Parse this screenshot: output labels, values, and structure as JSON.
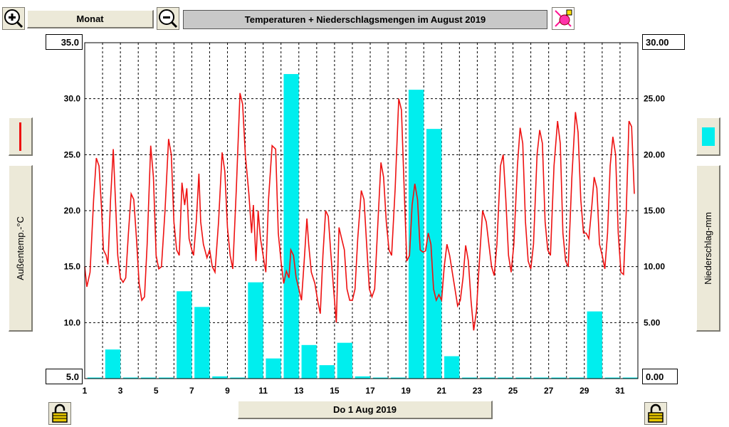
{
  "toolbar": {
    "period_label": "Monat",
    "title": "Temperaturen + Niederschlagsmengen im August 2019"
  },
  "axis": {
    "left_top_label": "35.0",
    "right_top_label": "30.00",
    "left_bottom_label": "5.0",
    "right_bottom_label": "0.00",
    "left_title": "Außentemp.-°C",
    "right_title": "Niederschlag-mm"
  },
  "footer": {
    "date_label": "Do 1 Aug 2019"
  },
  "colors": {
    "temperature": "#ee1111",
    "precipitation": "#00eeee"
  },
  "chart_data": {
    "type": "bar+line",
    "x_range": [
      1,
      32
    ],
    "x_ticks": [
      "1",
      "3",
      "5",
      "7",
      "9",
      "11",
      "13",
      "15",
      "17",
      "19",
      "21",
      "23",
      "25",
      "27",
      "29",
      "31"
    ],
    "left_axis": {
      "min": 5,
      "max": 35,
      "ticks": [
        "30.0",
        "25.0",
        "20.0",
        "15.0",
        "10.0"
      ]
    },
    "right_axis": {
      "min": 0,
      "max": 30,
      "ticks": [
        "25.00",
        "20.00",
        "15.00",
        "10.00",
        "5.00"
      ]
    },
    "grid": true,
    "precipitation": [
      {
        "day": 1,
        "mm": 0
      },
      {
        "day": 2,
        "mm": 2.6
      },
      {
        "day": 3,
        "mm": 0
      },
      {
        "day": 4,
        "mm": 0
      },
      {
        "day": 5,
        "mm": 0
      },
      {
        "day": 6,
        "mm": 7.8
      },
      {
        "day": 7,
        "mm": 6.4
      },
      {
        "day": 8,
        "mm": 0.2
      },
      {
        "day": 9,
        "mm": 0
      },
      {
        "day": 10,
        "mm": 8.6
      },
      {
        "day": 11,
        "mm": 1.8
      },
      {
        "day": 12,
        "mm": 27.2
      },
      {
        "day": 13,
        "mm": 3.0
      },
      {
        "day": 14,
        "mm": 1.2
      },
      {
        "day": 15,
        "mm": 3.2
      },
      {
        "day": 16,
        "mm": 0.2
      },
      {
        "day": 17,
        "mm": 0
      },
      {
        "day": 18,
        "mm": 0
      },
      {
        "day": 19,
        "mm": 25.8
      },
      {
        "day": 20,
        "mm": 22.3
      },
      {
        "day": 21,
        "mm": 2.0
      },
      {
        "day": 22,
        "mm": 0
      },
      {
        "day": 23,
        "mm": 0
      },
      {
        "day": 24,
        "mm": 0
      },
      {
        "day": 25,
        "mm": 0
      },
      {
        "day": 26,
        "mm": 0
      },
      {
        "day": 27,
        "mm": 0
      },
      {
        "day": 28,
        "mm": 0
      },
      {
        "day": 29,
        "mm": 6.0
      },
      {
        "day": 30,
        "mm": 0
      },
      {
        "day": 31,
        "mm": 0
      }
    ],
    "temperature": [
      [
        1.0,
        15.0
      ],
      [
        1.12,
        13.2
      ],
      [
        1.3,
        14.5
      ],
      [
        1.5,
        21.0
      ],
      [
        1.65,
        24.7
      ],
      [
        1.8,
        24.0
      ],
      [
        1.95,
        20.0
      ],
      [
        2.05,
        16.5
      ],
      [
        2.2,
        16.0
      ],
      [
        2.3,
        15.2
      ],
      [
        2.45,
        21.0
      ],
      [
        2.6,
        25.5
      ],
      [
        2.72,
        21.0
      ],
      [
        2.85,
        16.0
      ],
      [
        3.0,
        14.0
      ],
      [
        3.15,
        13.6
      ],
      [
        3.3,
        14.0
      ],
      [
        3.45,
        18.0
      ],
      [
        3.6,
        21.5
      ],
      [
        3.75,
        21.0
      ],
      [
        3.9,
        17.5
      ],
      [
        4.05,
        13.5
      ],
      [
        4.2,
        12.0
      ],
      [
        4.35,
        12.3
      ],
      [
        4.5,
        17.0
      ],
      [
        4.7,
        25.8
      ],
      [
        4.85,
        23.0
      ],
      [
        5.0,
        16.0
      ],
      [
        5.15,
        14.8
      ],
      [
        5.3,
        15.0
      ],
      [
        5.5,
        20.0
      ],
      [
        5.7,
        26.4
      ],
      [
        5.85,
        25.0
      ],
      [
        6.0,
        19.0
      ],
      [
        6.15,
        16.5
      ],
      [
        6.3,
        16.0
      ],
      [
        6.45,
        22.5
      ],
      [
        6.6,
        20.5
      ],
      [
        6.72,
        22.0
      ],
      [
        6.85,
        17.5
      ],
      [
        7.0,
        16.5
      ],
      [
        7.1,
        16.0
      ],
      [
        7.25,
        19.0
      ],
      [
        7.4,
        23.3
      ],
      [
        7.5,
        19.0
      ],
      [
        7.65,
        17.0
      ],
      [
        7.85,
        15.8
      ],
      [
        8.0,
        16.5
      ],
      [
        8.15,
        15.0
      ],
      [
        8.3,
        14.5
      ],
      [
        8.5,
        19.0
      ],
      [
        8.7,
        25.2
      ],
      [
        8.85,
        23.5
      ],
      [
        9.0,
        18.5
      ],
      [
        9.15,
        16.0
      ],
      [
        9.3,
        14.8
      ],
      [
        9.5,
        22.0
      ],
      [
        9.7,
        30.5
      ],
      [
        9.85,
        29.5
      ],
      [
        10.0,
        25.0
      ],
      [
        10.2,
        21.5
      ],
      [
        10.35,
        18.0
      ],
      [
        10.45,
        20.5
      ],
      [
        10.6,
        15.5
      ],
      [
        10.72,
        20.0
      ],
      [
        10.85,
        17.5
      ],
      [
        11.0,
        16.0
      ],
      [
        11.15,
        14.5
      ],
      [
        11.3,
        21.0
      ],
      [
        11.5,
        25.8
      ],
      [
        11.7,
        25.5
      ],
      [
        11.85,
        18.0
      ],
      [
        12.0,
        15.5
      ],
      [
        12.15,
        13.5
      ],
      [
        12.3,
        14.6
      ],
      [
        12.45,
        14.0
      ],
      [
        12.55,
        16.5
      ],
      [
        12.7,
        16.0
      ],
      [
        12.85,
        14.0
      ],
      [
        13.0,
        13.0
      ],
      [
        13.15,
        12.0
      ],
      [
        13.3,
        15.5
      ],
      [
        13.45,
        19.3
      ],
      [
        13.55,
        17.0
      ],
      [
        13.7,
        14.5
      ],
      [
        13.9,
        13.5
      ],
      [
        14.05,
        12.0
      ],
      [
        14.2,
        10.8
      ],
      [
        14.35,
        16.0
      ],
      [
        14.5,
        20.0
      ],
      [
        14.65,
        19.5
      ],
      [
        14.8,
        16.0
      ],
      [
        14.95,
        13.0
      ],
      [
        15.1,
        10.0
      ],
      [
        15.25,
        18.5
      ],
      [
        15.4,
        17.5
      ],
      [
        15.55,
        16.5
      ],
      [
        15.7,
        13.0
      ],
      [
        15.85,
        12.0
      ],
      [
        16.0,
        12.0
      ],
      [
        16.15,
        13.0
      ],
      [
        16.3,
        17.5
      ],
      [
        16.5,
        21.8
      ],
      [
        16.65,
        21.0
      ],
      [
        16.8,
        17.0
      ],
      [
        16.95,
        13.0
      ],
      [
        17.1,
        12.3
      ],
      [
        17.25,
        13.0
      ],
      [
        17.4,
        18.0
      ],
      [
        17.6,
        24.3
      ],
      [
        17.75,
        23.0
      ],
      [
        17.9,
        19.0
      ],
      [
        18.05,
        16.5
      ],
      [
        18.2,
        16.0
      ],
      [
        18.4,
        22.0
      ],
      [
        18.6,
        30.0
      ],
      [
        18.75,
        29.0
      ],
      [
        18.9,
        22.0
      ],
      [
        19.05,
        15.5
      ],
      [
        19.2,
        16.0
      ],
      [
        19.35,
        20.5
      ],
      [
        19.5,
        22.4
      ],
      [
        19.65,
        21.0
      ],
      [
        19.8,
        16.5
      ],
      [
        19.95,
        16.3
      ],
      [
        20.1,
        16.4
      ],
      [
        20.25,
        18.0
      ],
      [
        20.4,
        17.0
      ],
      [
        20.55,
        13.0
      ],
      [
        20.7,
        12.0
      ],
      [
        20.85,
        12.5
      ],
      [
        21.0,
        12.0
      ],
      [
        21.15,
        15.0
      ],
      [
        21.3,
        17.0
      ],
      [
        21.45,
        16.0
      ],
      [
        21.6,
        14.5
      ],
      [
        21.75,
        13.0
      ],
      [
        21.9,
        11.5
      ],
      [
        22.05,
        12.0
      ],
      [
        22.2,
        14.0
      ],
      [
        22.35,
        16.9
      ],
      [
        22.5,
        15.5
      ],
      [
        22.65,
        12.0
      ],
      [
        22.8,
        9.3
      ],
      [
        22.95,
        11.0
      ],
      [
        23.1,
        15.0
      ],
      [
        23.3,
        20.0
      ],
      [
        23.5,
        19.0
      ],
      [
        23.65,
        17.0
      ],
      [
        23.8,
        15.0
      ],
      [
        23.95,
        14.2
      ],
      [
        24.1,
        17.0
      ],
      [
        24.3,
        24.0
      ],
      [
        24.45,
        25.0
      ],
      [
        24.6,
        21.0
      ],
      [
        24.75,
        16.0
      ],
      [
        24.9,
        14.5
      ],
      [
        25.05,
        17.0
      ],
      [
        25.25,
        24.0
      ],
      [
        25.4,
        27.4
      ],
      [
        25.55,
        26.0
      ],
      [
        25.7,
        19.0
      ],
      [
        25.85,
        15.5
      ],
      [
        26.0,
        14.8
      ],
      [
        26.15,
        17.0
      ],
      [
        26.35,
        25.0
      ],
      [
        26.5,
        27.2
      ],
      [
        26.65,
        26.0
      ],
      [
        26.8,
        19.0
      ],
      [
        26.95,
        16.5
      ],
      [
        27.1,
        16.0
      ],
      [
        27.3,
        24.0
      ],
      [
        27.5,
        28.0
      ],
      [
        27.65,
        26.0
      ],
      [
        27.8,
        18.0
      ],
      [
        27.95,
        15.5
      ],
      [
        28.1,
        15.0
      ],
      [
        28.3,
        23.0
      ],
      [
        28.5,
        28.8
      ],
      [
        28.65,
        27.0
      ],
      [
        28.8,
        21.0
      ],
      [
        28.95,
        18.0
      ],
      [
        29.1,
        18.0
      ],
      [
        29.25,
        17.5
      ],
      [
        29.4,
        20.0
      ],
      [
        29.55,
        23.0
      ],
      [
        29.7,
        22.0
      ],
      [
        29.85,
        17.0
      ],
      [
        30.0,
        16.0
      ],
      [
        30.15,
        14.8
      ],
      [
        30.3,
        18.0
      ],
      [
        30.45,
        24.0
      ],
      [
        30.6,
        26.6
      ],
      [
        30.75,
        25.0
      ],
      [
        30.9,
        18.0
      ],
      [
        31.05,
        14.5
      ],
      [
        31.2,
        14.3
      ],
      [
        31.35,
        20.0
      ],
      [
        31.5,
        28.0
      ],
      [
        31.65,
        27.5
      ],
      [
        31.8,
        21.5
      ]
    ]
  }
}
